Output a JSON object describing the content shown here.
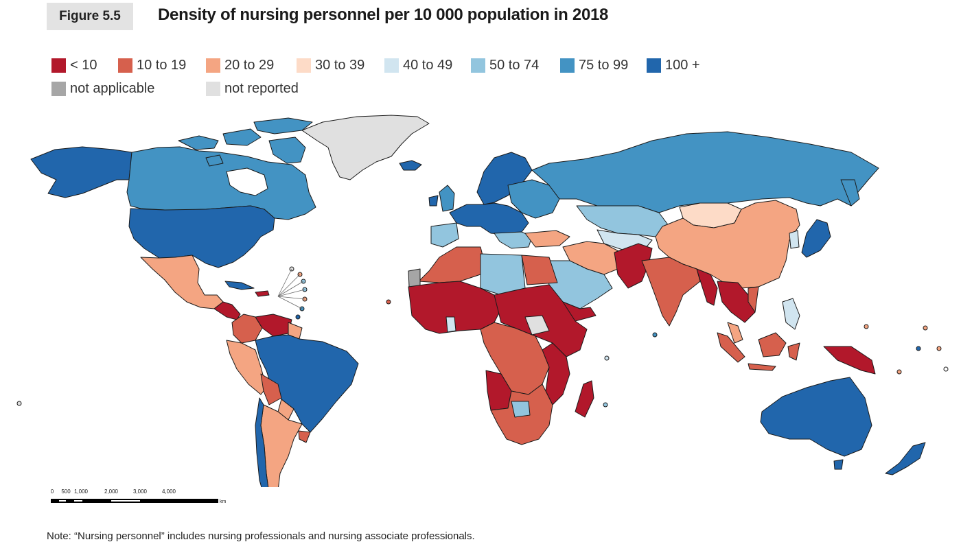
{
  "figure": {
    "label": "Figure 5.5",
    "title": "Density of nursing personnel per 10 000 population in 2018"
  },
  "legend": {
    "row1": [
      {
        "label": "< 10",
        "color": "#b2182b"
      },
      {
        "label": "10 to 19",
        "color": "#d6604d"
      },
      {
        "label": "20 to 29",
        "color": "#f4a582"
      },
      {
        "label": "30 to 39",
        "color": "#fddbc7"
      },
      {
        "label": "40 to 49",
        "color": "#d1e5f0"
      },
      {
        "label": "50 to 74",
        "color": "#92c5de"
      },
      {
        "label": "75 to 99",
        "color": "#4393c3"
      },
      {
        "label": "100 +",
        "color": "#2166ac"
      }
    ],
    "row2": [
      {
        "label": "not applicable",
        "color": "#a6a6a6"
      },
      {
        "label": "not reported",
        "color": "#e0e0e0"
      }
    ]
  },
  "scale_bar": {
    "ticks": [
      "0",
      "500",
      "1,000",
      "2,000",
      "3,000",
      "4,000"
    ],
    "unit": "km"
  },
  "note": "Note: “Nursing personnel” includes nursing professionals and nursing associate professionals."
}
